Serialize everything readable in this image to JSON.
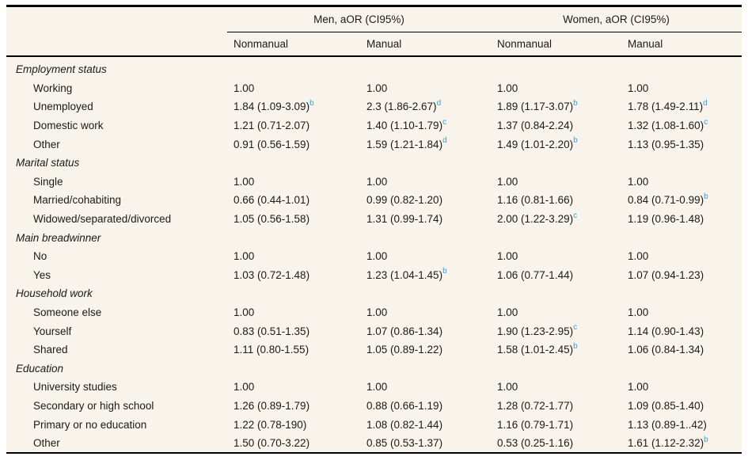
{
  "colors": {
    "table_background": "#f8f4ec",
    "rule": "#000000",
    "text": "#1a1a1a",
    "superscript_accent": "#3aa0d9"
  },
  "table": {
    "spanners": [
      "Men, aOR (CI95%)",
      "Women, aOR (CI95%)"
    ],
    "columns": [
      "Nonmanual",
      "Manual",
      "Nonmanual",
      "Manual"
    ],
    "groups": [
      {
        "label": "Employment status",
        "rows": [
          {
            "label": "Working",
            "cells": [
              {
                "v": "1.00"
              },
              {
                "v": "1.00"
              },
              {
                "v": "1.00"
              },
              {
                "v": "1.00"
              }
            ]
          },
          {
            "label": "Unemployed",
            "cells": [
              {
                "v": "1.84 (1.09-3.09)",
                "s": "b"
              },
              {
                "v": "2.3 (1.86-2.67)",
                "s": "d"
              },
              {
                "v": "1.89 (1.17-3.07)",
                "s": "b"
              },
              {
                "v": "1.78 (1.49-2.11)",
                "s": "d"
              }
            ]
          },
          {
            "label": "Domestic work",
            "cells": [
              {
                "v": "1.21 (0.71-2.07)"
              },
              {
                "v": "1.40 (1.10-1.79)",
                "s": "c"
              },
              {
                "v": "1.37 (0.84-2.24)"
              },
              {
                "v": "1.32 (1.08-1.60)",
                "s": "c"
              }
            ]
          },
          {
            "label": "Other",
            "cells": [
              {
                "v": "0.91 (0.56-1.59)"
              },
              {
                "v": "1.59 (1.21-1.84)",
                "s": "d"
              },
              {
                "v": "1.49 (1.01-2.20)",
                "s": "b"
              },
              {
                "v": "1.13 (0.95-1.35)"
              }
            ]
          }
        ]
      },
      {
        "label": "Marital status",
        "rows": [
          {
            "label": "Single",
            "cells": [
              {
                "v": "1.00"
              },
              {
                "v": "1.00"
              },
              {
                "v": "1.00"
              },
              {
                "v": "1.00"
              }
            ]
          },
          {
            "label": "Married/cohabiting",
            "cells": [
              {
                "v": "0.66 (0.44-1.01)"
              },
              {
                "v": "0.99 (0.82-1.20)"
              },
              {
                "v": "1.16 (0.81-1.66)"
              },
              {
                "v": "0.84 (0.71-0.99)",
                "s": "b"
              }
            ]
          },
          {
            "label": "Widowed/separated/divorced",
            "cells": [
              {
                "v": "1.05 (0.56-1.58)"
              },
              {
                "v": "1.31 (0.99-1.74)"
              },
              {
                "v": "2.00 (1.22-3.29)",
                "s": "c"
              },
              {
                "v": "1.19 (0.96-1.48)"
              }
            ]
          }
        ]
      },
      {
        "label": "Main breadwinner",
        "rows": [
          {
            "label": "No",
            "cells": [
              {
                "v": "1.00"
              },
              {
                "v": "1.00"
              },
              {
                "v": "1.00"
              },
              {
                "v": "1.00"
              }
            ]
          },
          {
            "label": "Yes",
            "cells": [
              {
                "v": "1.03 (0.72-1.48)"
              },
              {
                "v": "1.23 (1.04-1.45)",
                "s": "b"
              },
              {
                "v": "1.06 (0.77-1.44)"
              },
              {
                "v": "1.07 (0.94-1.23)"
              }
            ]
          }
        ]
      },
      {
        "label": "Household work",
        "rows": [
          {
            "label": "Someone else",
            "cells": [
              {
                "v": "1.00"
              },
              {
                "v": "1.00"
              },
              {
                "v": "1.00"
              },
              {
                "v": "1.00"
              }
            ]
          },
          {
            "label": "Yourself",
            "cells": [
              {
                "v": "0.83 (0.51-1.35)"
              },
              {
                "v": "1.07 (0.86-1.34)"
              },
              {
                "v": "1.90 (1.23-2.95)",
                "s": "c"
              },
              {
                "v": "1.14 (0.90-1.43)"
              }
            ]
          },
          {
            "label": "Shared",
            "cells": [
              {
                "v": "1.11 (0.80-1.55)"
              },
              {
                "v": "1.05 (0.89-1.22)"
              },
              {
                "v": "1.58 (1.01-2.45)",
                "s": "b"
              },
              {
                "v": "1.06 (0.84-1.34)"
              }
            ]
          }
        ]
      },
      {
        "label": "Education",
        "rows": [
          {
            "label": "University studies",
            "cells": [
              {
                "v": "1.00"
              },
              {
                "v": "1.00"
              },
              {
                "v": "1.00"
              },
              {
                "v": "1.00"
              }
            ]
          },
          {
            "label": "Secondary or high school",
            "cells": [
              {
                "v": "1.26 (0.89-1.79)"
              },
              {
                "v": "0.88 (0.66-1.19)"
              },
              {
                "v": "1.28 (0.72-1.77)"
              },
              {
                "v": "1.09 (0.85-1.40)"
              }
            ]
          },
          {
            "label": "Primary or no education",
            "cells": [
              {
                "v": "1.22 (0.78-190)"
              },
              {
                "v": "1.08 (0.82-1.44)"
              },
              {
                "v": "1.16 (0.79-1.71)"
              },
              {
                "v": "1.13 (0.89-1..42)"
              }
            ]
          },
          {
            "label": "Other",
            "cells": [
              {
                "v": "1.50 (0.70-3.22)"
              },
              {
                "v": "0.85 (0.53-1.37)"
              },
              {
                "v": "0.53 (0.25-1.16)"
              },
              {
                "v": "1.61 (1.12-2.32)",
                "s": "b"
              }
            ]
          }
        ]
      }
    ]
  }
}
